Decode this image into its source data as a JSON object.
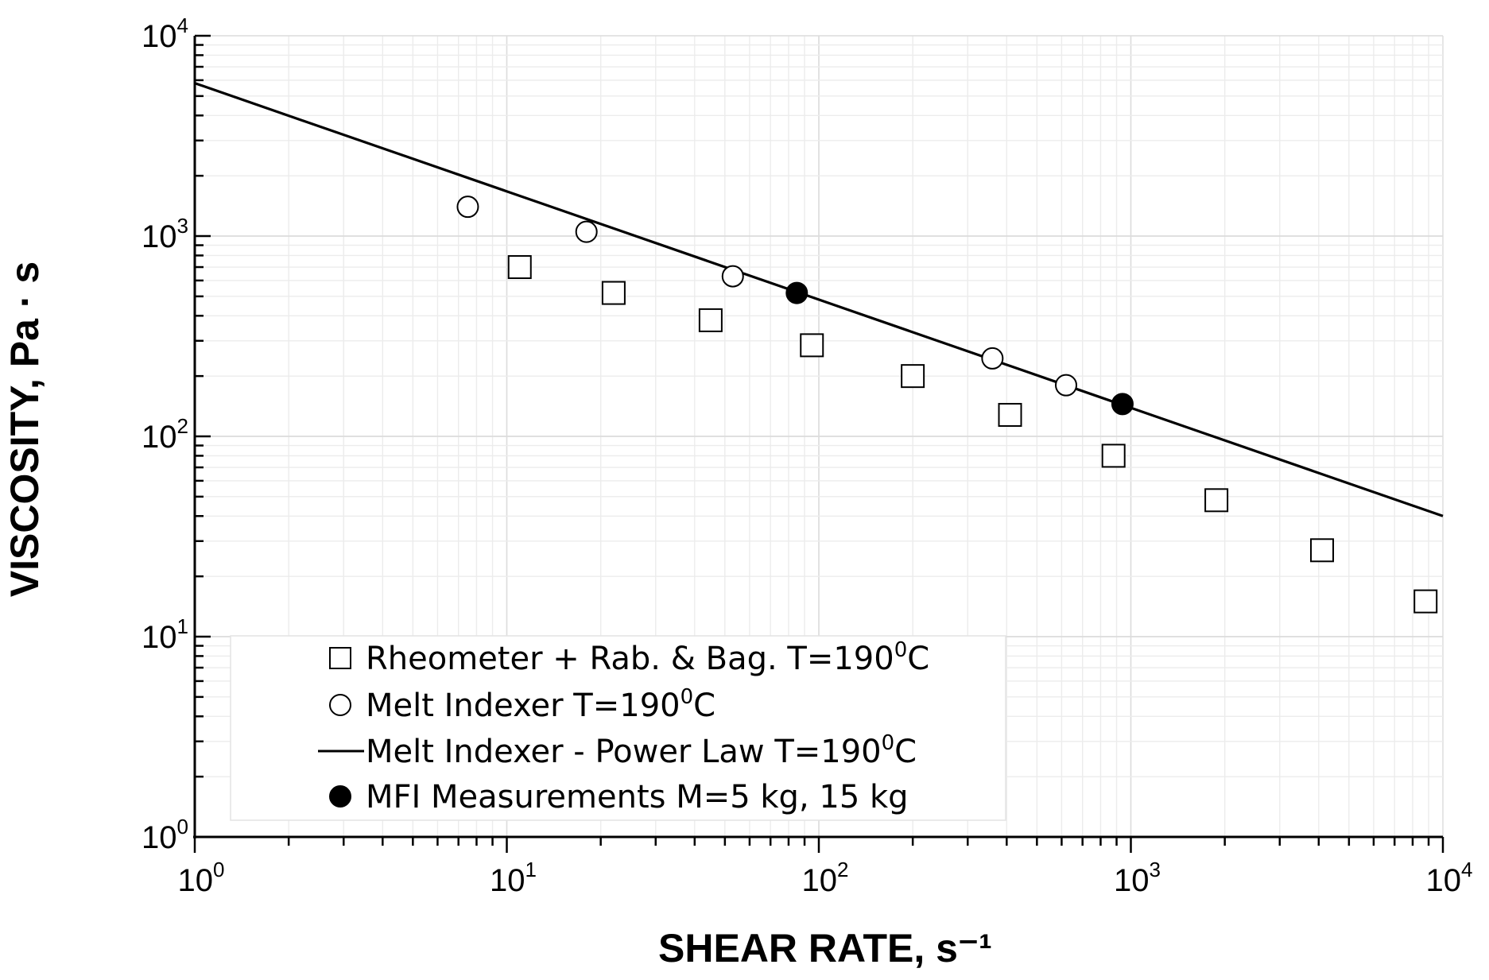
{
  "chart_data": {
    "type": "scatter",
    "x_scale": "log",
    "y_scale": "log",
    "xlim": [
      1,
      10000
    ],
    "ylim": [
      1,
      10000
    ],
    "grid": true,
    "legend_position": "bottom-left",
    "xlabel": "SHEAR RATE, s⁻¹",
    "ylabel": "VISCOSITY, Pa · s",
    "x_ticks": [
      {
        "base": "10",
        "exp": "0"
      },
      {
        "base": "10",
        "exp": "1"
      },
      {
        "base": "10",
        "exp": "2"
      },
      {
        "base": "10",
        "exp": "3"
      },
      {
        "base": "10",
        "exp": "4"
      }
    ],
    "y_ticks": [
      {
        "base": "10",
        "exp": "0"
      },
      {
        "base": "10",
        "exp": "1"
      },
      {
        "base": "10",
        "exp": "2"
      },
      {
        "base": "10",
        "exp": "3"
      },
      {
        "base": "10",
        "exp": "4"
      }
    ],
    "series": [
      {
        "name": "Rheometer + Rab. & Bag. T=190",
        "name_sup": "0",
        "name_tail": "C",
        "marker": "square-open",
        "points": [
          [
            11,
            700
          ],
          [
            22,
            520
          ],
          [
            45,
            380
          ],
          [
            95,
            285
          ],
          [
            200,
            200
          ],
          [
            410,
            128
          ],
          [
            880,
            80
          ],
          [
            1880,
            48
          ],
          [
            4100,
            27
          ],
          [
            8800,
            15
          ]
        ]
      },
      {
        "name": "Melt Indexer T=190",
        "name_sup": "0",
        "name_tail": "C",
        "marker": "circle-open",
        "points": [
          [
            7.5,
            1400
          ],
          [
            18,
            1050
          ],
          [
            53,
            630
          ],
          [
            360,
            245
          ],
          [
            620,
            180
          ]
        ]
      },
      {
        "name": "Melt Indexer - Power Law T=190",
        "name_sup": "0",
        "name_tail": "C",
        "marker": "line",
        "points": [
          [
            1,
            5800
          ],
          [
            10000,
            40
          ]
        ]
      },
      {
        "name": "MFI Measurements M=5 kg, 15 kg",
        "name_sup": "",
        "name_tail": "",
        "marker": "circle-filled",
        "points": [
          [
            85,
            520
          ],
          [
            940,
            145
          ]
        ]
      }
    ]
  }
}
